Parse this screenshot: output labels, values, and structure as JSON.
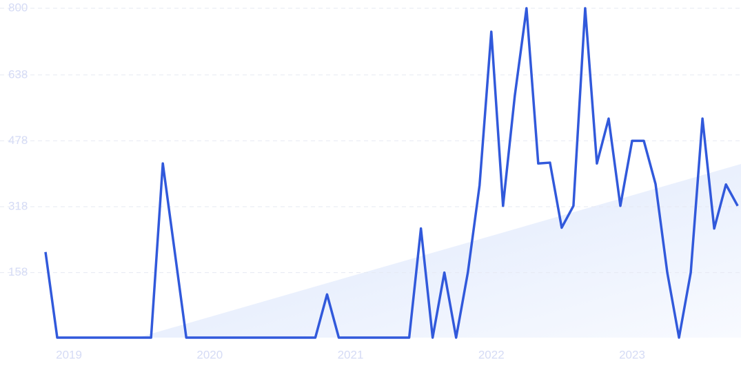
{
  "chart_data": {
    "type": "line",
    "categories": [
      null,
      null,
      "2019",
      null,
      null,
      null,
      null,
      null,
      null,
      null,
      null,
      null,
      null,
      null,
      "2020",
      null,
      null,
      null,
      null,
      null,
      null,
      null,
      null,
      null,
      null,
      null,
      "2021",
      null,
      null,
      null,
      null,
      null,
      null,
      null,
      null,
      null,
      null,
      null,
      "2022",
      null,
      null,
      null,
      null,
      null,
      null,
      null,
      null,
      null,
      null,
      null,
      "2023",
      null,
      null,
      null,
      null,
      null,
      null,
      null,
      null,
      null
    ],
    "series": [
      {
        "color": "#3159db",
        "values": [
          208,
          0,
          0,
          0,
          0,
          0,
          0,
          0,
          0,
          0,
          423,
          212,
          0,
          0,
          0,
          0,
          0,
          0,
          0,
          0,
          0,
          0,
          0,
          0,
          105,
          0,
          0,
          0,
          0,
          0,
          0,
          0,
          265,
          0,
          158,
          0,
          158,
          370,
          743,
          320,
          587,
          800,
          423,
          425,
          267,
          320,
          800,
          423,
          532,
          320,
          478,
          478,
          373,
          158,
          0,
          158,
          532,
          265,
          372,
          320
        ]
      }
    ],
    "ylim": [
      0,
      800
    ],
    "yticks": [
      158,
      318,
      478,
      638,
      800
    ],
    "grid": true
  }
}
